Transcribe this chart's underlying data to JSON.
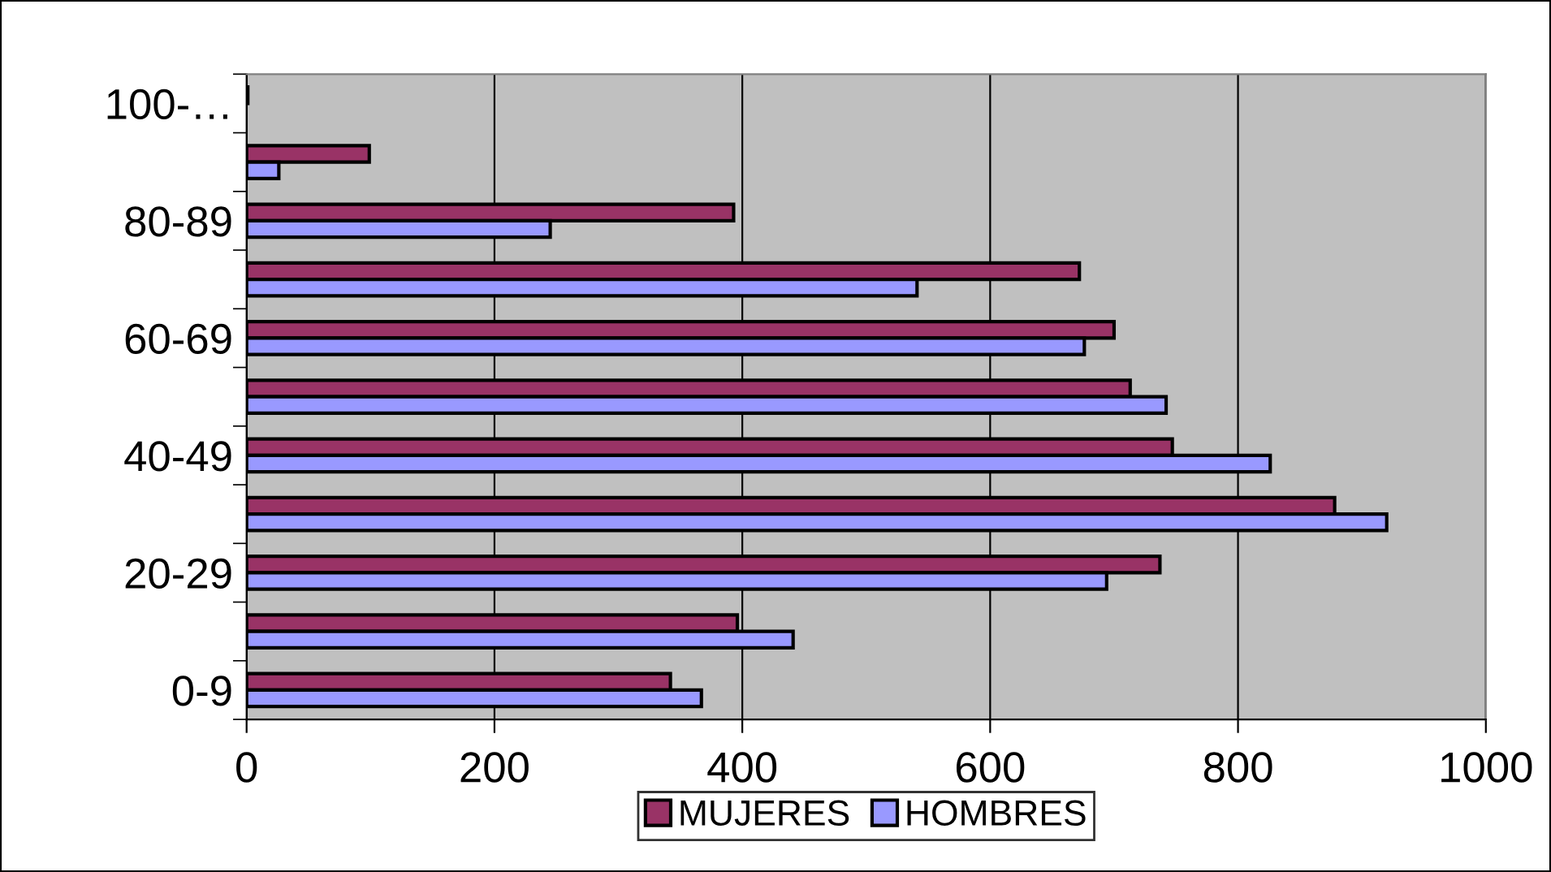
{
  "chart_data": {
    "type": "bar",
    "orientation": "horizontal",
    "categories": [
      "100-…",
      null,
      "80-89",
      null,
      "60-69",
      null,
      "40-49",
      null,
      "20-29",
      null,
      "0-9"
    ],
    "series": [
      {
        "name": "MUJERES",
        "color": "#993366",
        "values": [
          1,
          99,
          393,
          672,
          700,
          713,
          747,
          878,
          737,
          396,
          342
        ]
      },
      {
        "name": "HOMBRES",
        "color": "#9999ff",
        "values": [
          null,
          26,
          245,
          541,
          676,
          742,
          826,
          920,
          694,
          441,
          367
        ]
      }
    ],
    "xlim": [
      0,
      1000
    ],
    "xticks": [
      0,
      200,
      400,
      600,
      800,
      1000
    ],
    "grid": "x",
    "legend": "bottom"
  }
}
